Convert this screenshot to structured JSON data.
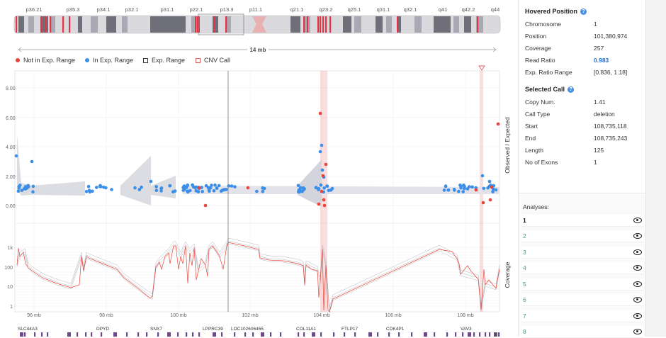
{
  "ideogram": {
    "bands": [
      "p36.21",
      "p35.3",
      "p34.1",
      "p32.1",
      "p31.1",
      "p22.1",
      "p13.3",
      "p11.1",
      "q21.1",
      "q23.2",
      "q25.1",
      "q31.1",
      "q32.1",
      "q41",
      "q42.2",
      "q44"
    ],
    "span_label": "14 mb"
  },
  "legend": {
    "not_in_range": "Not in Exp. Range",
    "in_range": "In Exp. Range",
    "exp_range": "Exp. Range",
    "cnv_call": "CNV Call"
  },
  "colors": {
    "not_in_range": "#e8443a",
    "in_range": "#3b8ee8",
    "cnv": "#f4a3a3",
    "accent": "#4a90e2"
  },
  "ratio_axis": {
    "label": "Observed / Expected",
    "ticks": [
      "8.00",
      "6.00",
      "4.00",
      "2.00",
      "0.00"
    ]
  },
  "coverage_axis": {
    "label": "Coverage",
    "ticks": [
      "1k",
      "100",
      "10",
      "1"
    ]
  },
  "x_axis": {
    "ticks": [
      "96 mb",
      "98 mb",
      "100 mb",
      "102 mb",
      "104 mb",
      "106 mb",
      "108 mb"
    ]
  },
  "genes": [
    "SLC44A3",
    "DPYD",
    "SNX7",
    "LPPRC39",
    "LOC102606465",
    "COL11A1",
    "FTLP17",
    "CDK4P1",
    "VAV3"
  ],
  "hovered_position": {
    "title": "Hovered Position",
    "rows": [
      {
        "k": "Chromosome",
        "v": "1"
      },
      {
        "k": "Position",
        "v": "101,380,974"
      },
      {
        "k": "Coverage",
        "v": "257"
      },
      {
        "k": "Read Ratio",
        "v": "0.983"
      },
      {
        "k": "Exp. Ratio Range",
        "v": "[0.836, 1.18]"
      }
    ]
  },
  "selected_call": {
    "title": "Selected Call",
    "rows": [
      {
        "k": "Copy Num.",
        "v": "1.41"
      },
      {
        "k": "Call Type",
        "v": "deletion"
      },
      {
        "k": "Start",
        "v": "108,735,118"
      },
      {
        "k": "End",
        "v": "108,735,243"
      },
      {
        "k": "Length",
        "v": "125"
      },
      {
        "k": "No of Exons",
        "v": "1"
      }
    ]
  },
  "analyses": {
    "title": "Analyses:",
    "items": [
      "1",
      "2",
      "3",
      "4",
      "5",
      "6",
      "7",
      "8"
    ]
  }
}
